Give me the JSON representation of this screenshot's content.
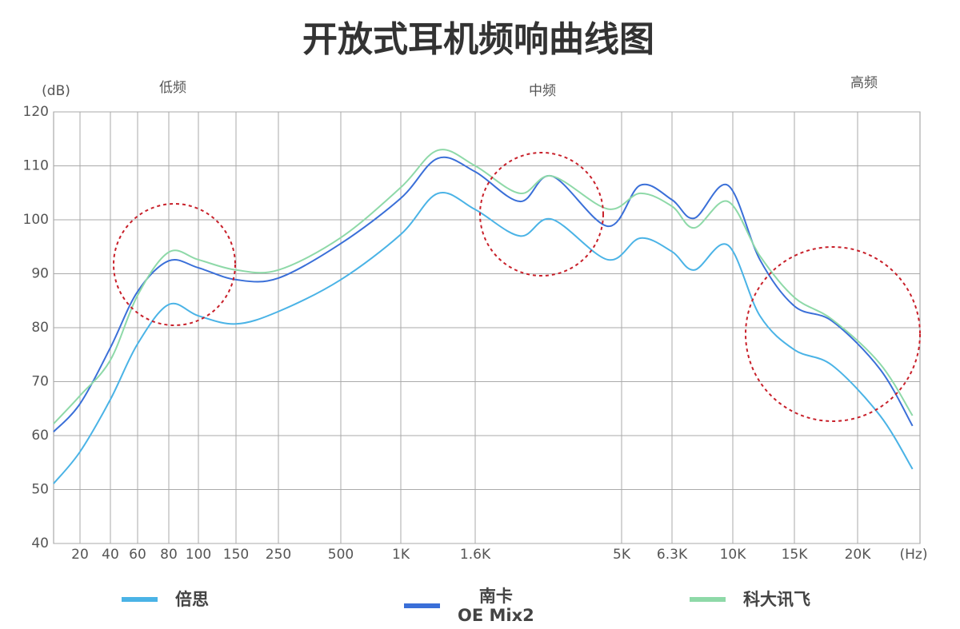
{
  "chart_data": {
    "type": "line",
    "title": "开放式耳机频响曲线图",
    "y_label": "(dB)",
    "x_label": "(Hz)",
    "annotations": [
      "低频",
      "中频",
      "高频"
    ],
    "xlim": [
      10,
      25000
    ],
    "ylim": [
      40,
      120
    ],
    "yticks": [
      40,
      50,
      60,
      70,
      80,
      90,
      100,
      110,
      120
    ],
    "xticks": [
      20,
      40,
      60,
      80,
      100,
      150,
      250,
      500,
      {
        "value": 1000,
        "label": "1K"
      },
      {
        "value": 1600,
        "label": "1.6K"
      },
      {
        "value": 5000,
        "label": "5K"
      },
      {
        "value": 6300,
        "label": "6.3K"
      },
      {
        "value": 10000,
        "label": "10K"
      },
      {
        "value": 15000,
        "label": "15K"
      },
      {
        "value": 20000,
        "label": "20K"
      }
    ],
    "grid": true,
    "x": [
      10,
      20,
      40,
      60,
      80,
      100,
      150,
      250,
      500,
      1000,
      1300,
      1600,
      2640,
      3380,
      4680,
      5480,
      6300,
      7660,
      9700,
      12200,
      15000,
      18000,
      21800,
      24400
    ],
    "series": [
      {
        "name": "倍思",
        "color": "#4ab3e6",
        "values": [
          51.1,
          57,
          66.7,
          77,
          84.3,
          82.2,
          80.7,
          83,
          88.9,
          97.3,
          104.9,
          101.9,
          97,
          100.1,
          92.6,
          96.6,
          94.1,
          90.7,
          95.3,
          82.2,
          75.9,
          73,
          63.7,
          53.8
        ]
      },
      {
        "name": "南卡\nOE Mix2",
        "color": "#3a6fd8",
        "values": [
          60.7,
          65.9,
          76.3,
          86.7,
          92.4,
          91.1,
          88.9,
          89.2,
          95.6,
          104,
          111.4,
          108.9,
          103.4,
          108.1,
          98.8,
          106.4,
          103.7,
          100.3,
          106.4,
          92.6,
          84,
          81.2,
          72.3,
          61.8
        ]
      },
      {
        "name": "科大讯飞",
        "color": "#8ed9a8",
        "values": [
          62.2,
          67.4,
          74,
          86,
          94,
          92.6,
          90.7,
          90.7,
          96.7,
          106,
          112.9,
          110,
          104.9,
          108.1,
          102,
          104.9,
          102.5,
          98.5,
          103.4,
          93.3,
          85.6,
          81.5,
          73.3,
          63.7
        ]
      }
    ]
  }
}
